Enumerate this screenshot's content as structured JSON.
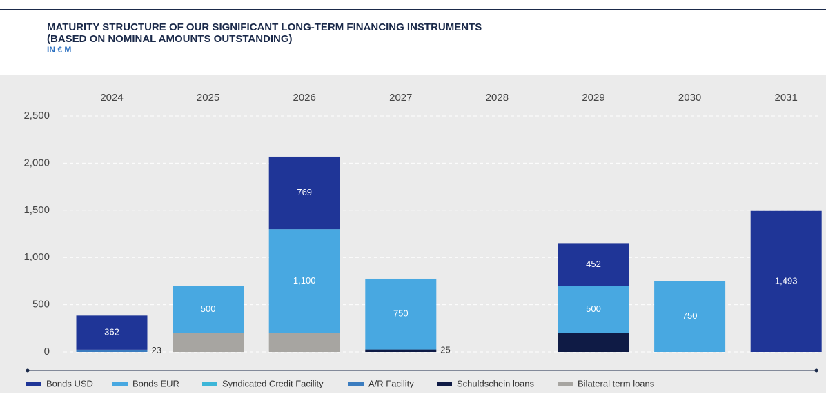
{
  "chart_data": {
    "type": "stacked_bar",
    "title": "MATURITY STRUCTURE OF OUR SIGNIFICANT LONG-TERM FINANCING INSTRUMENTS",
    "subtitle": "(BASED ON NOMINAL AMOUNTS OUTSTANDING)",
    "unit_label": "IN € M",
    "categories": [
      "2024",
      "2025",
      "2026",
      "2027",
      "2028",
      "2029",
      "2030",
      "2031"
    ],
    "series": [
      {
        "name": "Bonds USD",
        "color": "#1f3597",
        "values": [
          362,
          null,
          769,
          null,
          null,
          452,
          null,
          1493
        ],
        "value_labels": [
          "362",
          null,
          "769",
          null,
          null,
          "452",
          null,
          "1,493"
        ]
      },
      {
        "name": "Bonds EUR",
        "color": "#48a8e1",
        "values": [
          null,
          500,
          1100,
          750,
          null,
          500,
          750,
          null
        ],
        "value_labels": [
          null,
          "500",
          "1,100",
          "750",
          null,
          "500",
          "750",
          null
        ]
      },
      {
        "name": "Syndicated Credit Facility",
        "color": "#3db6d8",
        "values": [
          null,
          null,
          null,
          null,
          null,
          null,
          null,
          null
        ]
      },
      {
        "name": "A/R Facility",
        "color": "#3b7cbf",
        "values": [
          23,
          null,
          null,
          null,
          null,
          null,
          null,
          null
        ]
      },
      {
        "name": "Schuldschein loans",
        "color": "#0f1b45",
        "values": [
          null,
          null,
          null,
          25,
          null,
          200,
          null,
          null
        ]
      },
      {
        "name": "Bilateral term loans",
        "color": "#a7a5a1",
        "values": [
          null,
          200,
          200,
          null,
          null,
          null,
          null,
          null
        ]
      }
    ],
    "ylim": [
      0,
      2500
    ],
    "yticks": [
      0,
      500,
      {
        "value": 1000,
        "label": "1,000"
      },
      {
        "value": 1500,
        "label": "1,500"
      },
      {
        "value": 2000,
        "label": "2,000"
      },
      {
        "value": 2500,
        "label": "2,500"
      }
    ],
    "grid": true
  }
}
